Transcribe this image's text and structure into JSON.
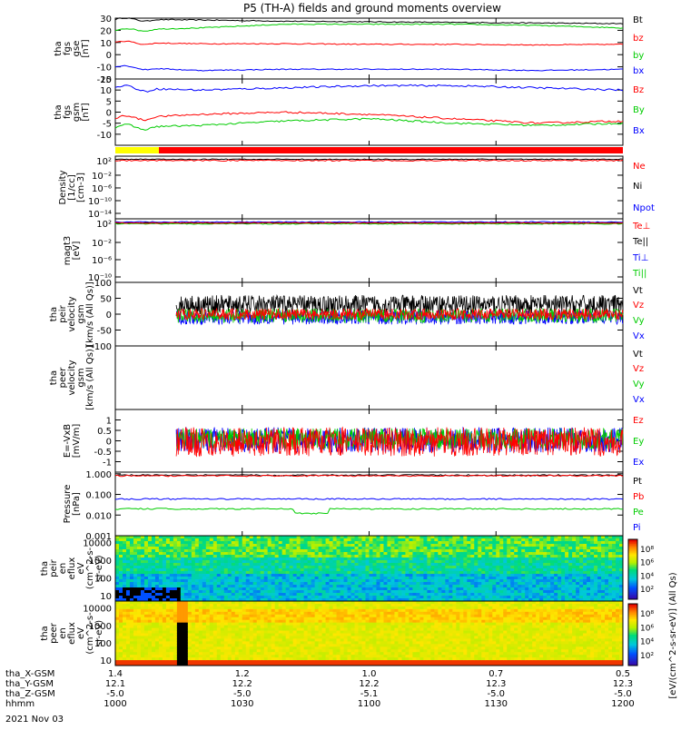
{
  "title": "P5 (TH-A) fields and ground moments overview",
  "date_label": "2021 Nov 03",
  "colors": {
    "black": "#000000",
    "red": "#ff0000",
    "green": "#00cc00",
    "blue": "#0000ff",
    "bar_yellow": "#ffff00",
    "bar_red": "#ff0000"
  },
  "chart_data": [
    {
      "id": "fgs_gse",
      "type": "line",
      "ylabel": [
        "tha",
        "fgs",
        "gse",
        "[nT]"
      ],
      "ylim": [
        -20,
        30
      ],
      "yticks": [
        -20,
        -10,
        0,
        10,
        20,
        30
      ],
      "series": [
        {
          "name": "Bt",
          "color": "black",
          "base": [
            29,
            28.5,
            27.5,
            27,
            26.5,
            26,
            25.5
          ]
        },
        {
          "name": "bz",
          "color": "red",
          "base": [
            10,
            9,
            9,
            8.5,
            8.5,
            8,
            8.5
          ]
        },
        {
          "name": "by",
          "color": "green",
          "base": [
            20,
            22,
            25,
            25,
            25,
            24,
            22
          ]
        },
        {
          "name": "bx",
          "color": "blue",
          "base": [
            -10,
            -13,
            -12,
            -12,
            -12,
            -13,
            -12
          ]
        }
      ]
    },
    {
      "id": "fgs_gsm",
      "type": "line",
      "ylabel": [
        "tha",
        "fgs",
        "gsm",
        "[nT]"
      ],
      "ylim": [
        -15,
        15
      ],
      "yticks": [
        -10,
        -5,
        0,
        5,
        10,
        15
      ],
      "series": [
        {
          "name": "Bz",
          "color": "red",
          "base": [
            -3,
            -1,
            0,
            -1,
            -3,
            -5,
            -4
          ]
        },
        {
          "name": "By",
          "color": "green",
          "base": [
            -7,
            -6,
            -4,
            -3,
            -5,
            -6,
            -5
          ]
        },
        {
          "name": "Bx",
          "color": "blue",
          "base": [
            11,
            10,
            11,
            12,
            12,
            11,
            10
          ]
        }
      ]
    },
    {
      "id": "density",
      "type": "line",
      "yscale": "log",
      "ylabel": [
        "Density",
        "[1/cc]",
        "[cm-3]"
      ],
      "ylim": [
        1e-18,
        10000
      ],
      "ytick_labels": [
        "10⁻¹⁴",
        "10⁻¹⁰",
        "10⁻⁶",
        "10⁻²",
        "10²"
      ],
      "series": [
        {
          "name": "Ne",
          "color": "red"
        },
        {
          "name": "Ni",
          "color": "black"
        },
        {
          "name": "Npot",
          "color": "blue"
        }
      ]
    },
    {
      "id": "temperature",
      "type": "line",
      "yscale": "log",
      "ylabel": [
        "magt3",
        "[eV]"
      ],
      "ylim": [
        1e-10,
        10000
      ],
      "ytick_labels": [
        "10⁻¹⁰",
        "10⁻⁶",
        "10⁻²",
        "10²"
      ],
      "series": [
        {
          "name": "Te⊥",
          "color": "red"
        },
        {
          "name": "Te||",
          "color": "black"
        },
        {
          "name": "Ti⊥",
          "color": "blue"
        },
        {
          "name": "Ti||",
          "color": "green"
        }
      ]
    },
    {
      "id": "peir_velocity",
      "type": "line",
      "ylabel": [
        "tha",
        "peir",
        "velocity",
        "gsm",
        "[km/s (All Qs)]"
      ],
      "ylim": [
        -100,
        100
      ],
      "yticks": [
        -100,
        -50,
        0,
        50,
        100
      ],
      "series": [
        {
          "name": "Vt",
          "color": "black"
        },
        {
          "name": "Vz",
          "color": "red"
        },
        {
          "name": "Vy",
          "color": "green"
        },
        {
          "name": "Vx",
          "color": "blue"
        }
      ]
    },
    {
      "id": "peer_velocity",
      "type": "line",
      "ylabel": [
        "tha",
        "peer",
        "velocity",
        "gsm",
        "[km/s (All Qs)]"
      ],
      "series": [
        {
          "name": "Vt",
          "color": "black"
        },
        {
          "name": "Vz",
          "color": "red"
        },
        {
          "name": "Vy",
          "color": "green"
        },
        {
          "name": "Vx",
          "color": "blue"
        }
      ]
    },
    {
      "id": "efield",
      "type": "line",
      "ylabel": [
        "E=-VxB",
        "[mV/m]"
      ],
      "ylim": [
        -1.5,
        1.5
      ],
      "yticks": [
        -1,
        -0.5,
        0,
        0.5,
        1
      ],
      "series": [
        {
          "name": "Ez",
          "color": "red"
        },
        {
          "name": "Ey",
          "color": "green"
        },
        {
          "name": "Ex",
          "color": "blue"
        }
      ]
    },
    {
      "id": "pressure",
      "type": "line",
      "yscale": "log",
      "ylabel": [
        "Pressure",
        "[nPa]"
      ],
      "ylim": [
        0.001,
        1.2
      ],
      "ytick_labels": [
        "0.001",
        "0.010",
        "0.100",
        "1.000"
      ],
      "series": [
        {
          "name": "Pt",
          "color": "black",
          "base": 0.85
        },
        {
          "name": "Pb",
          "color": "red",
          "base": 0.8
        },
        {
          "name": "Pe",
          "color": "green",
          "base": 0.02
        },
        {
          "name": "Pi",
          "color": "blue",
          "base": 0.06
        }
      ]
    },
    {
      "id": "peir_spec",
      "type": "heatmap",
      "ylabel": [
        "tha",
        "peir",
        "en",
        "eflux",
        "eV",
        "(cm^2-s-",
        "sr-eV)"
      ],
      "ylim": [
        5,
        25000
      ],
      "ytick_labels": [
        "10",
        "100",
        "1000",
        "10000"
      ]
    },
    {
      "id": "peer_spec",
      "type": "heatmap",
      "ylabel": [
        "tha",
        "peer",
        "en",
        "eflux",
        "eV",
        "(cm^2-s-",
        "sr-eV)"
      ],
      "ylim": [
        5,
        25000
      ],
      "ytick_labels": [
        "10",
        "100",
        "1000",
        "10000"
      ]
    }
  ],
  "colorbar": {
    "label": "[eV/(cm^2-s-sr-eV)] (All Qs)",
    "labels_top": [
      "10⁸",
      "10⁶",
      "10⁴",
      "10²"
    ],
    "labels_bottom": [
      "10⁸",
      "10⁶",
      "10⁴",
      "10²"
    ]
  },
  "x_axis": {
    "rows": [
      {
        "name": "tha_X-GSM",
        "values": [
          "1.4",
          "1.2",
          "1.0",
          "0.7",
          "0.5"
        ]
      },
      {
        "name": "tha_Y-GSM",
        "values": [
          "12.1",
          "12.2",
          "12.2",
          "12.3",
          "12.3"
        ]
      },
      {
        "name": "tha_Z-GSM",
        "values": [
          "-5.0",
          "-5.0",
          "-5.1",
          "-5.0",
          "-5.0"
        ]
      },
      {
        "name": "hhmm",
        "values": [
          "1000",
          "1030",
          "1100",
          "1130",
          "1200"
        ]
      }
    ]
  }
}
